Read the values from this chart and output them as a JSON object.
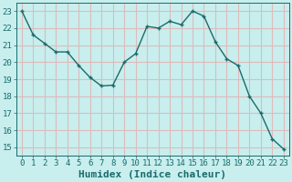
{
  "x": [
    0,
    1,
    2,
    3,
    4,
    5,
    6,
    7,
    8,
    9,
    10,
    11,
    12,
    13,
    14,
    15,
    16,
    17,
    18,
    19,
    20,
    21,
    22,
    23
  ],
  "y": [
    23.0,
    21.6,
    21.1,
    20.6,
    20.6,
    19.8,
    19.1,
    18.6,
    18.65,
    20.0,
    20.5,
    22.1,
    22.0,
    22.4,
    22.2,
    23.0,
    22.7,
    21.2,
    20.2,
    19.8,
    18.0,
    17.0,
    15.5,
    14.9
  ],
  "line_color": "#1a6b6b",
  "marker": "+",
  "bg_color": "#c8eeee",
  "grid_color": "#ddbbbb",
  "xlabel": "Humidex (Indice chaleur)",
  "ylim": [
    14.5,
    23.5
  ],
  "xlim": [
    -0.5,
    23.5
  ],
  "yticks": [
    15,
    16,
    17,
    18,
    19,
    20,
    21,
    22,
    23
  ],
  "xticks": [
    0,
    1,
    2,
    3,
    4,
    5,
    6,
    7,
    8,
    9,
    10,
    11,
    12,
    13,
    14,
    15,
    16,
    17,
    18,
    19,
    20,
    21,
    22,
    23
  ],
  "tick_color": "#1a6b6b",
  "xlabel_fontsize": 8,
  "tick_fontsize": 6.5,
  "marker_size": 3,
  "linewidth": 1.0
}
